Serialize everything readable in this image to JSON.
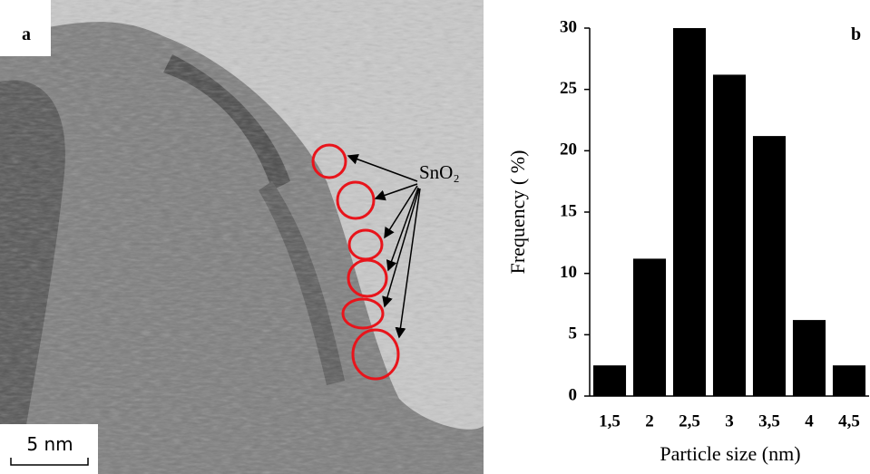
{
  "image": {
    "panel_label": "a",
    "annotation": "SnO₂",
    "scale_bar": "5 nm"
  },
  "chart_data": {
    "type": "bar",
    "panel_label": "b",
    "x_label": "Particle size (nm)",
    "y_label": "Frequency ( %)",
    "categories": [
      "1,5",
      "2",
      "2,5",
      "3",
      "3,5",
      "4",
      "4,5"
    ],
    "values": [
      2.5,
      11.2,
      30,
      26.2,
      21.2,
      6.2,
      2.5
    ],
    "color": "#000000",
    "ylim": [
      0,
      30
    ],
    "yticks": [
      0,
      5,
      10,
      15,
      20,
      25,
      30
    ],
    "grid": false
  }
}
